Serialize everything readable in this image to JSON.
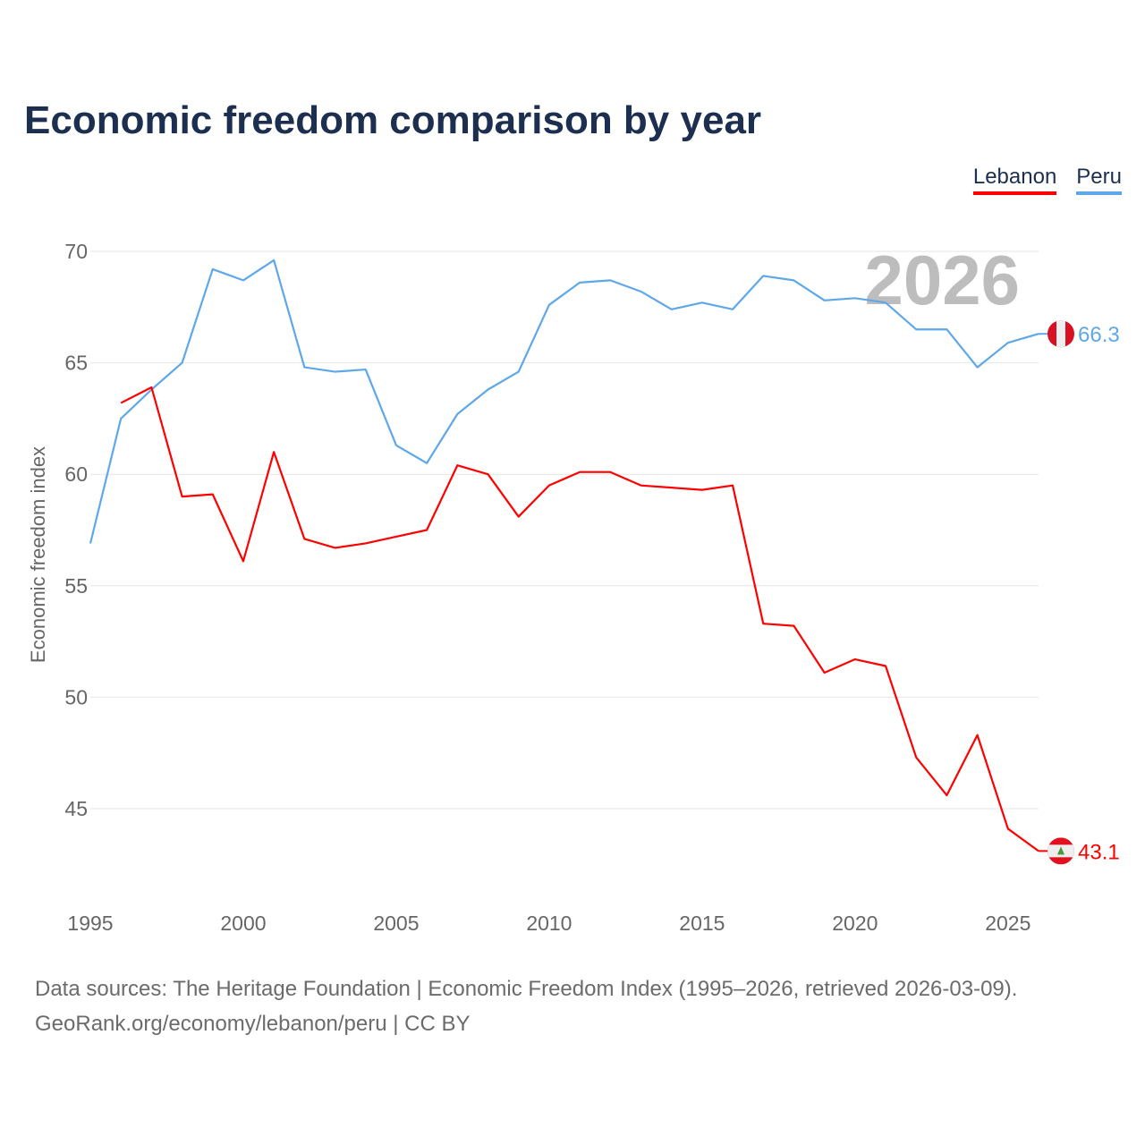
{
  "title": "Economic freedom comparison by year",
  "footer": {
    "line1": "Data sources: The Heritage Foundation | Economic Freedom Index (1995–2026, retrieved 2026-03-09).",
    "line2": "GeoRank.org/economy/lebanon/peru | CC BY"
  },
  "chart_data": {
    "type": "line",
    "title": "Economic freedom comparison by year",
    "xlabel": "",
    "ylabel": "Economic freedom index",
    "xlim": [
      1995,
      2026
    ],
    "ylim": [
      42,
      71
    ],
    "yticks": [
      45,
      50,
      55,
      60,
      65,
      70
    ],
    "xticks": [
      1995,
      2000,
      2005,
      2010,
      2015,
      2020,
      2025
    ],
    "grid": true,
    "legend_position": "top-right",
    "year_watermark": "2026",
    "series": [
      {
        "name": "Lebanon",
        "color": "#ff0000",
        "end_label": "43.1",
        "flag": "lebanon-flag",
        "x": [
          1996,
          1997,
          1998,
          1999,
          2000,
          2001,
          2002,
          2003,
          2004,
          2005,
          2006,
          2007,
          2008,
          2009,
          2010,
          2011,
          2012,
          2013,
          2014,
          2015,
          2016,
          2017,
          2018,
          2019,
          2020,
          2021,
          2022,
          2023,
          2024,
          2025,
          2026
        ],
        "values": [
          63.2,
          63.9,
          59.0,
          59.1,
          56.1,
          61.0,
          57.1,
          56.7,
          56.9,
          57.2,
          57.5,
          60.4,
          60.0,
          58.1,
          59.5,
          60.1,
          60.1,
          59.5,
          59.4,
          59.3,
          59.5,
          53.3,
          53.2,
          51.1,
          51.7,
          51.4,
          47.3,
          45.6,
          48.3,
          44.1,
          43.1
        ]
      },
      {
        "name": "Peru",
        "color": "#5ea8ea",
        "end_label": "66.3",
        "flag": "peru-flag",
        "x": [
          1995,
          1996,
          1997,
          1998,
          1999,
          2000,
          2001,
          2002,
          2003,
          2004,
          2005,
          2006,
          2007,
          2008,
          2009,
          2010,
          2011,
          2012,
          2013,
          2014,
          2015,
          2016,
          2017,
          2018,
          2019,
          2020,
          2021,
          2022,
          2023,
          2024,
          2025,
          2026
        ],
        "values": [
          56.9,
          62.5,
          63.8,
          65.0,
          69.2,
          68.7,
          69.6,
          64.8,
          64.6,
          64.7,
          61.3,
          60.5,
          62.7,
          63.8,
          64.6,
          67.6,
          68.6,
          68.7,
          68.2,
          67.4,
          67.7,
          67.4,
          68.9,
          68.7,
          67.8,
          67.9,
          67.7,
          66.5,
          66.5,
          64.8,
          65.9,
          66.3
        ]
      }
    ]
  }
}
